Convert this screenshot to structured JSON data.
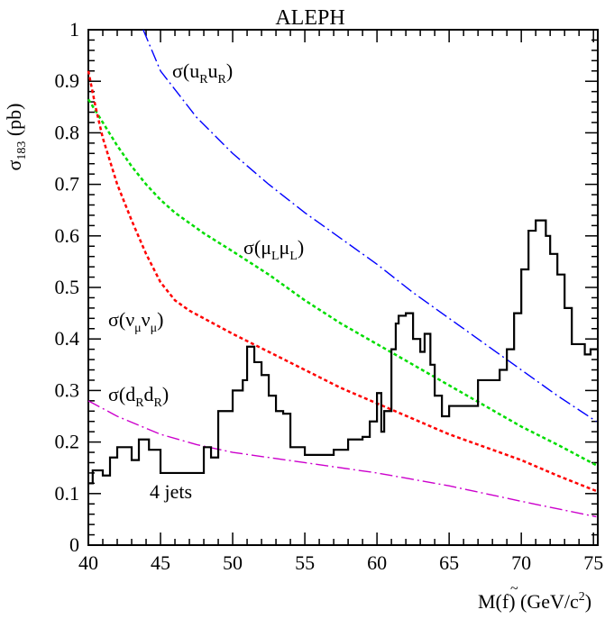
{
  "chart_data": {
    "type": "line",
    "title": "ALEPH",
    "ylabel_main": "σ",
    "ylabel_sub": "183",
    "ylabel_unit": " (pb)",
    "xlabel_main": "M(f",
    "xlabel_tilde": "~",
    "xlabel_rest": ") (GeV/c",
    "xlabel_sup": "2",
    "xlabel_close": ")",
    "xlim": [
      40,
      75.3
    ],
    "ylim": [
      0,
      1
    ],
    "xticks": [
      40,
      45,
      50,
      55,
      60,
      65,
      70,
      75
    ],
    "yticks": [
      0,
      0.1,
      0.2,
      0.3,
      0.4,
      0.5,
      0.6,
      0.7,
      0.8,
      0.9,
      1
    ],
    "ytick_labels": [
      "0",
      "0.1",
      "0.2",
      "0.3",
      "0.4",
      "0.5",
      "0.6",
      "0.7",
      "0.8",
      "0.9",
      "1"
    ],
    "grid": false,
    "annotations": {
      "uR": {
        "prefix": "σ(",
        "p1": "u",
        "s1": "R",
        "p2": "u",
        "s2": "R",
        "suffix": ")"
      },
      "muL": {
        "prefix": "σ(",
        "p1": "μ",
        "s1": "L",
        "p2": "μ",
        "s2": "L",
        "suffix": ")"
      },
      "nu": {
        "prefix": "σ(",
        "p1": "ν",
        "s1": "μ",
        "p2": "ν",
        "s2": "μ",
        "suffix": ")"
      },
      "dR": {
        "prefix": "σ(",
        "p1": "d",
        "s1": "R",
        "p2": "d",
        "s2": "R",
        "suffix": ")"
      },
      "jets": "4 jets"
    },
    "series": [
      {
        "style": "dash-dot",
        "color": "#0000ff",
        "x": [
          43.8,
          45,
          47.5,
          50,
          52.5,
          55,
          57.5,
          60,
          62.5,
          65,
          67.5,
          70,
          72.5,
          75.2
        ],
        "y": [
          1.0,
          0.92,
          0.83,
          0.76,
          0.7,
          0.645,
          0.595,
          0.545,
          0.49,
          0.44,
          0.39,
          0.34,
          0.29,
          0.24
        ]
      },
      {
        "style": "dotted",
        "color": "#00dd00",
        "x": [
          40,
          41,
          42,
          43,
          44,
          45,
          46,
          48,
          50,
          52.5,
          55,
          57.5,
          60,
          62.5,
          65,
          67.5,
          70,
          72.5,
          75.2
        ],
        "y": [
          0.865,
          0.82,
          0.775,
          0.735,
          0.7,
          0.67,
          0.645,
          0.605,
          0.57,
          0.525,
          0.475,
          0.43,
          0.39,
          0.35,
          0.31,
          0.27,
          0.23,
          0.195,
          0.155
        ]
      },
      {
        "style": "dotted",
        "color": "#ff0000",
        "x": [
          40,
          40.5,
          41,
          42,
          43,
          44,
          45,
          46,
          47,
          48,
          50,
          52.5,
          55,
          57.5,
          60,
          62.5,
          65,
          67.5,
          70,
          72.5,
          75.2
        ],
        "y": [
          0.92,
          0.85,
          0.79,
          0.7,
          0.63,
          0.565,
          0.51,
          0.475,
          0.455,
          0.44,
          0.41,
          0.375,
          0.34,
          0.305,
          0.275,
          0.245,
          0.215,
          0.19,
          0.165,
          0.135,
          0.105
        ]
      },
      {
        "style": "dash-dot",
        "color": "#cc00cc",
        "x": [
          40,
          42,
          45,
          47.5,
          50,
          55,
          60,
          65,
          70,
          75.2
        ],
        "y": [
          0.28,
          0.25,
          0.215,
          0.195,
          0.18,
          0.16,
          0.14,
          0.115,
          0.085,
          0.055
        ]
      },
      {
        "style": "step",
        "color": "#000000",
        "x": [
          40,
          40.3,
          41,
          41.5,
          42,
          43,
          43.5,
          44.2,
          45,
          46.2,
          47,
          48,
          48.5,
          49,
          50,
          50.7,
          51,
          51.5,
          52,
          52.5,
          53,
          53.5,
          54,
          55,
          56,
          57,
          58,
          59,
          59.5,
          60,
          60.3,
          60.5,
          61,
          61.3,
          61.5,
          62,
          62.5,
          63,
          63.3,
          63.7,
          64,
          64.5,
          65,
          65.5,
          66,
          67,
          68,
          68.5,
          69,
          69.5,
          70,
          70.5,
          71,
          71.7,
          72,
          72.5,
          73,
          73.5,
          74,
          74.4,
          74.8,
          75.3
        ],
        "y": [
          0.12,
          0.145,
          0.135,
          0.17,
          0.19,
          0.165,
          0.205,
          0.185,
          0.14,
          0.14,
          0.14,
          0.19,
          0.17,
          0.26,
          0.3,
          0.32,
          0.385,
          0.355,
          0.33,
          0.29,
          0.26,
          0.255,
          0.19,
          0.175,
          0.175,
          0.185,
          0.205,
          0.21,
          0.24,
          0.295,
          0.22,
          0.26,
          0.38,
          0.43,
          0.445,
          0.45,
          0.4,
          0.375,
          0.41,
          0.35,
          0.29,
          0.25,
          0.27,
          0.27,
          0.27,
          0.32,
          0.32,
          0.34,
          0.38,
          0.45,
          0.535,
          0.61,
          0.63,
          0.6,
          0.565,
          0.525,
          0.46,
          0.39,
          0.39,
          0.37,
          0.38,
          0.38
        ]
      }
    ]
  }
}
